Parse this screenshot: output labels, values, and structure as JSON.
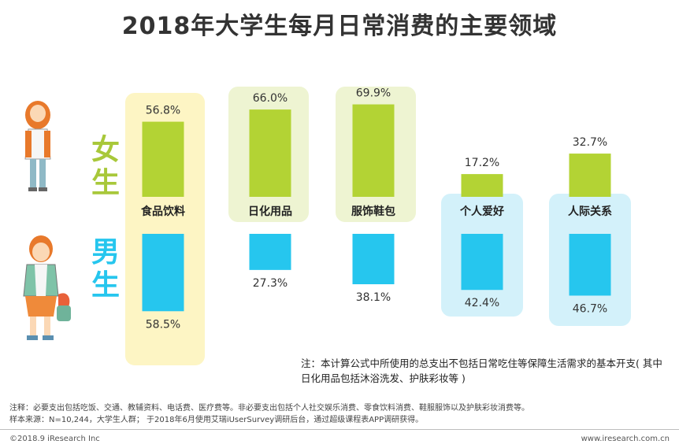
{
  "title": "2018年大学生每月日常消费的主要领域",
  "chart_data": {
    "type": "bar",
    "title": "2018年大学生每月日常消费的主要领域",
    "categories": [
      "食品饮料",
      "日化用品",
      "服饰鞋包",
      "个人爱好",
      "人际关系"
    ],
    "series": [
      {
        "name": "女生",
        "values": [
          56.8,
          66.0,
          69.9,
          17.2,
          32.7
        ],
        "labels": [
          "56.8%",
          "66.0%",
          "69.9%",
          "17.2%",
          "32.7%"
        ],
        "color": "#b3d334"
      },
      {
        "name": "男生",
        "values": [
          58.5,
          27.3,
          38.1,
          42.4,
          46.7
        ],
        "labels": [
          "58.5%",
          "27.3%",
          "38.1%",
          "42.4%",
          "46.7%"
        ],
        "color": "#26c6ee"
      }
    ],
    "ylim": [
      0,
      100
    ],
    "unit": "%"
  },
  "legend": {
    "female": "女生",
    "male": "男生"
  },
  "note": "注：本计算公式中所使用的总支出不包括日常吃住等保障生活需求的基本开支( 其中日化用品包括沐浴洗发、护肤彩妆等 )",
  "footnote_line1": "注释：必要支出包括吃饭、交通、教辅资料、电话费、医疗费等。非必要支出包括个人社交娱乐消费、零食饮料消费、鞋服服饰以及护肤彩妆消费等。",
  "footnote_line2": "样本来源：N=10,244，大学生人群； 于2018年6月使用艾瑞iUserSurvey调研后台，通过超级课程表APP调研获得。",
  "copyright": "©2018.9 iResearch Inc",
  "website": "www.iresearch.com.cn",
  "colors": {
    "female": "#b3d334",
    "male": "#26c6ee",
    "yellow_hl": "#fdf5c4",
    "green_hl": "#eef4d2",
    "blue_hl": "#d3f1fa"
  }
}
